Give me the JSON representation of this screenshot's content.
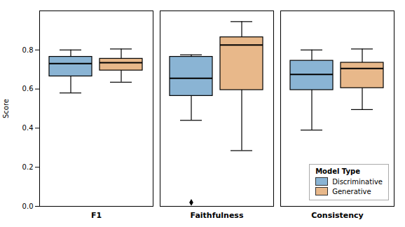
{
  "chart_data": {
    "type": "box",
    "title": "",
    "ylabel": "Score",
    "categories": [
      "F1",
      "Faithfulness",
      "Consistency"
    ],
    "series": [
      {
        "name": "Discriminative",
        "color": "#8ab4d4",
        "values": [
          {
            "whislo": 0.58,
            "q1": 0.665,
            "median": 0.73,
            "q3": 0.765,
            "whishi": 0.8,
            "fliers": []
          },
          {
            "whislo": 0.44,
            "q1": 0.565,
            "median": 0.655,
            "q3": 0.765,
            "whishi": 0.775,
            "fliers": [
              0.02
            ]
          },
          {
            "whislo": 0.39,
            "q1": 0.595,
            "median": 0.675,
            "q3": 0.745,
            "whishi": 0.8,
            "fliers": []
          }
        ]
      },
      {
        "name": "Generative",
        "color": "#e8b88a",
        "values": [
          {
            "whislo": 0.635,
            "q1": 0.695,
            "median": 0.735,
            "q3": 0.755,
            "whishi": 0.805,
            "fliers": []
          },
          {
            "whislo": 0.285,
            "q1": 0.595,
            "median": 0.825,
            "q3": 0.865,
            "whishi": 0.945,
            "fliers": []
          },
          {
            "whislo": 0.495,
            "q1": 0.605,
            "median": 0.705,
            "q3": 0.735,
            "whishi": 0.805,
            "fliers": []
          }
        ]
      }
    ],
    "ylim": [
      0.0,
      1.0
    ],
    "yticks": [
      {
        "value": 0.0,
        "label": "0.0"
      },
      0.2,
      0.4,
      0.6,
      0.8
    ],
    "grid": false,
    "legend": "lower right",
    "legend_title": "Model Type"
  }
}
